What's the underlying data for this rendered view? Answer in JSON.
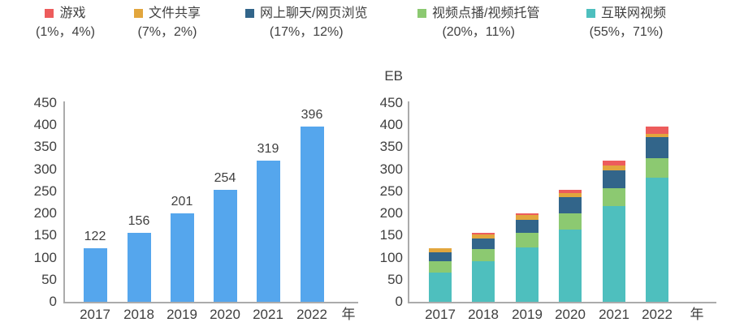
{
  "legend": {
    "items": [
      {
        "label": "游戏",
        "percents": "(1%，4%)",
        "color": "#ED5C5C"
      },
      {
        "label": "文件共享",
        "percents": "(7%，2%)",
        "color": "#E2A63D"
      },
      {
        "label": "网上聊天/网页浏览",
        "percents": "(17%，12%)",
        "color": "#32658A"
      },
      {
        "label": "视频点播/视频托管",
        "percents": "(20%，11%)",
        "color": "#8CC971"
      },
      {
        "label": "互联网视频",
        "percents": "(55%，71%)",
        "color": "#4EBFBE"
      }
    ]
  },
  "axis": {
    "x_unit": "年",
    "y_ticks": [
      0,
      50,
      100,
      150,
      200,
      250,
      300,
      350,
      400,
      450
    ]
  },
  "chart_data": [
    {
      "type": "bar",
      "categories": [
        "2017",
        "2018",
        "2019",
        "2020",
        "2021",
        "2022"
      ],
      "values": [
        122,
        156,
        201,
        254,
        319,
        396
      ],
      "bar_color": "#55A6ED",
      "ylim": [
        0,
        450
      ],
      "xlabel": "年",
      "ylabel": "",
      "grid": false,
      "data_labels_shown": true
    },
    {
      "type": "stacked-bar",
      "categories": [
        "2017",
        "2018",
        "2019",
        "2020",
        "2021",
        "2022"
      ],
      "ylabel": "EB",
      "xlabel": "年",
      "ylim": [
        0,
        450
      ],
      "grid": false,
      "legend_position": "top",
      "series": [
        {
          "name": "互联网视频",
          "color": "#4EBFBE",
          "values": [
            67,
            91,
            123,
            164,
            216,
            281
          ]
        },
        {
          "name": "视频点播/视频托管",
          "color": "#8CC971",
          "values": [
            24,
            28,
            33,
            37,
            41,
            44
          ]
        },
        {
          "name": "网上聊天/网页浏览",
          "color": "#32658A",
          "values": [
            21,
            25,
            30,
            36,
            41,
            47
          ]
        },
        {
          "name": "文件共享",
          "color": "#E2A63D",
          "values": [
            9,
            9,
            10,
            10,
            10,
            8
          ]
        },
        {
          "name": "游戏",
          "color": "#ED5C5C",
          "values": [
            1,
            3,
            5,
            7,
            11,
            16
          ]
        }
      ]
    }
  ]
}
